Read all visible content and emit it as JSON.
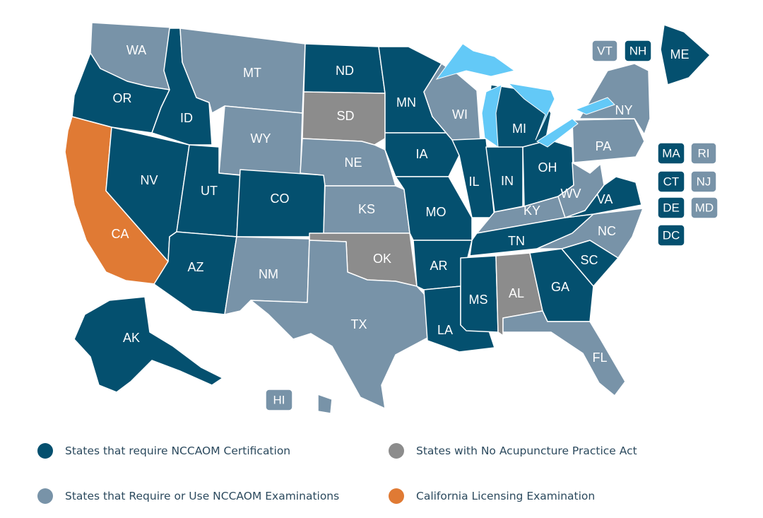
{
  "colors": {
    "certification": "#04506f",
    "examinations": "#7893a8",
    "no_act": "#8c8c8c",
    "california": "#e07a34",
    "lakes": "#63c9f7"
  },
  "states": {
    "WA": "examinations",
    "OR": "certification",
    "CA": "california",
    "NV": "certification",
    "ID": "certification",
    "MT": "examinations",
    "WY": "examinations",
    "UT": "certification",
    "AZ": "certification",
    "CO": "certification",
    "NM": "examinations",
    "ND": "certification",
    "SD": "no_act",
    "NE": "examinations",
    "KS": "examinations",
    "OK": "no_act",
    "TX": "examinations",
    "MN": "certification",
    "IA": "certification",
    "MO": "certification",
    "AR": "certification",
    "LA": "certification",
    "WI": "examinations",
    "IL": "certification",
    "MS": "certification",
    "MI": "certification",
    "IN": "certification",
    "KY": "examinations",
    "TN": "certification",
    "AL": "no_act",
    "OH": "certification",
    "WV": "examinations",
    "VA": "certification",
    "NC": "examinations",
    "SC": "certification",
    "GA": "certification",
    "FL": "examinations",
    "PA": "examinations",
    "NY": "examinations",
    "ME": "certification",
    "AK": "certification",
    "HI": "examinations",
    "VT": "examinations",
    "NH": "certification",
    "MA": "certification",
    "RI": "examinations",
    "CT": "certification",
    "NJ": "examinations",
    "DE": "certification",
    "MD": "examinations",
    "DC": "certification"
  },
  "labels": {
    "WA": "WA",
    "OR": "OR",
    "CA": "CA",
    "NV": "NV",
    "ID": "ID",
    "MT": "MT",
    "WY": "WY",
    "UT": "UT",
    "AZ": "AZ",
    "CO": "CO",
    "NM": "NM",
    "ND": "ND",
    "SD": "SD",
    "NE": "NE",
    "KS": "KS",
    "OK": "OK",
    "TX": "TX",
    "MN": "MN",
    "IA": "IA",
    "MO": "MO",
    "AR": "AR",
    "LA": "LA",
    "WI": "WI",
    "IL": "IL",
    "MS": "MS",
    "MI": "MI",
    "IN": "IN",
    "KY": "KY",
    "TN": "TN",
    "AL": "AL",
    "OH": "OH",
    "WV": "WV",
    "VA": "VA",
    "NC": "NC",
    "SC": "SC",
    "GA": "GA",
    "FL": "FL",
    "PA": "PA",
    "NY": "NY",
    "ME": "ME",
    "AK": "AK"
  },
  "badges": {
    "VT": "VT",
    "NH": "NH",
    "MA": "MA",
    "RI": "RI",
    "CT": "CT",
    "NJ": "NJ",
    "DE": "DE",
    "MD": "MD",
    "DC": "DC",
    "HI": "HI"
  },
  "legend": {
    "certification": "States that require NCCAOM Certification",
    "no_act": "States with No Acupuncture Practice Act",
    "examinations": "States that Require or Use NCCAOM Examinations",
    "california": "California Licensing Examination"
  }
}
